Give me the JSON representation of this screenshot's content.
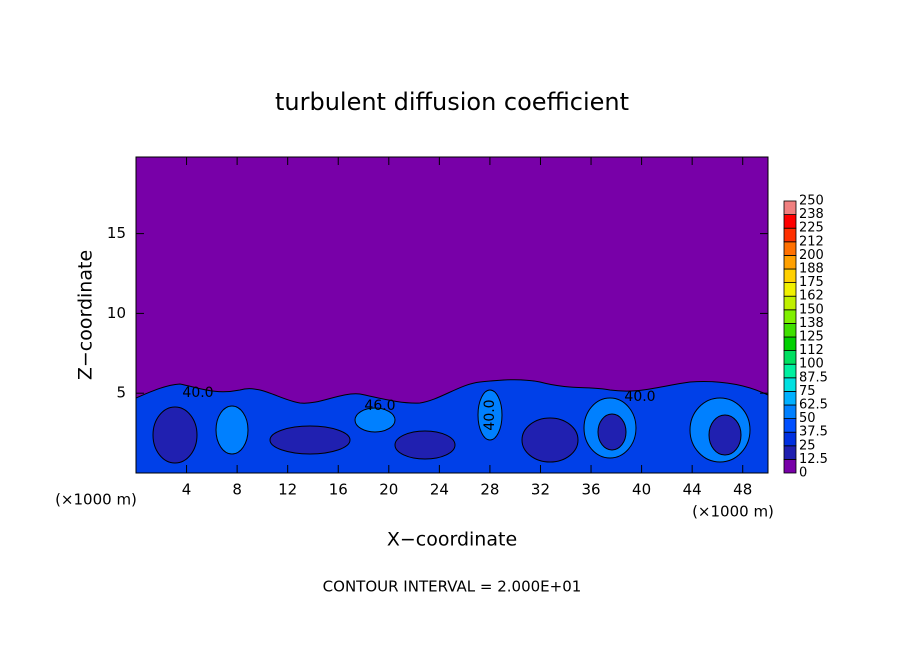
{
  "chart_data": {
    "type": "contour",
    "title": "turbulent diffusion coefficient",
    "xlabel": "X−coordinate",
    "ylabel": "Z−coordinate",
    "xunit": "(×1000 m)",
    "xunit2": "(×1000 m)",
    "footnote": "CONTOUR INTERVAL = 2.000E+01",
    "xlim": [
      0,
      50
    ],
    "ylim": [
      0,
      19.8
    ],
    "xticks": [
      4,
      8,
      12,
      16,
      20,
      24,
      28,
      32,
      36,
      40,
      44,
      48
    ],
    "yticks": [
      5,
      10,
      15
    ],
    "annotations": [
      "40.0",
      "46.0",
      "40.0",
      "40.0"
    ],
    "colorbar": {
      "levels": [
        0,
        12.5,
        25,
        37.5,
        50,
        62.5,
        75,
        87.5,
        100,
        112,
        125,
        138,
        150,
        162,
        175,
        188,
        200,
        212,
        225,
        238,
        250
      ],
      "colors": [
        "#7800a8",
        "#2020b0",
        "#0030e0",
        "#0050ff",
        "#0080ff",
        "#00b0ff",
        "#00e0e0",
        "#00f0a0",
        "#00e060",
        "#00d000",
        "#40e000",
        "#80f000",
        "#c0f000",
        "#f0f000",
        "#ffd000",
        "#ffa000",
        "#ff7000",
        "#ff3000",
        "#ff0000",
        "#f08080"
      ]
    }
  }
}
